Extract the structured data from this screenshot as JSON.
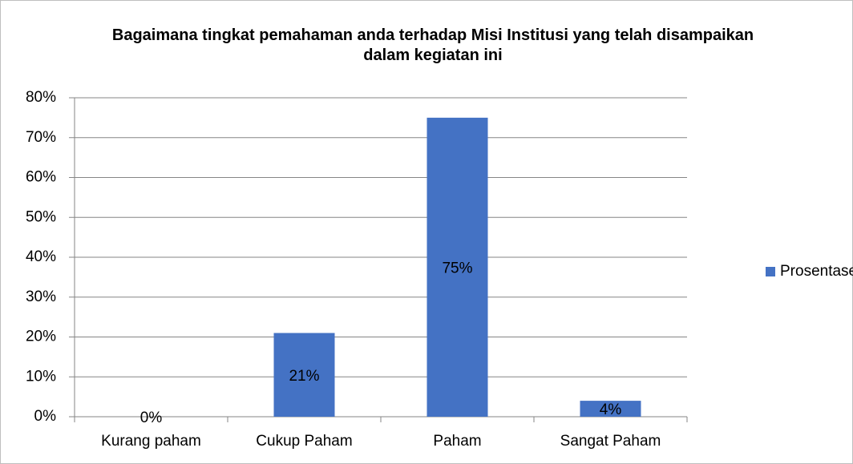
{
  "chart_data": {
    "type": "bar",
    "title": "Bagaimana tingkat pemahaman anda terhadap Misi Institusi yang telah disampaikan dalam kegiatan ini",
    "categories": [
      "Kurang paham",
      "Cukup Paham",
      "Paham",
      "Sangat Paham"
    ],
    "series": [
      {
        "name": "Prosentase",
        "color": "#4472c4",
        "values": [
          0,
          21,
          75,
          4
        ],
        "value_labels": [
          "0%",
          "21%",
          "75%",
          "4%"
        ]
      }
    ],
    "ylim": [
      0,
      80
    ],
    "yticks": [
      {
        "value": 0,
        "label": "0%"
      },
      {
        "value": 10,
        "label": "10%"
      },
      {
        "value": 20,
        "label": "20%"
      },
      {
        "value": 30,
        "label": "30%"
      },
      {
        "value": 40,
        "label": "40%"
      },
      {
        "value": 50,
        "label": "50%"
      },
      {
        "value": 60,
        "label": "60%"
      },
      {
        "value": 70,
        "label": "70%"
      },
      {
        "value": 80,
        "label": "80%"
      }
    ],
    "grid": true,
    "legend": "right"
  }
}
